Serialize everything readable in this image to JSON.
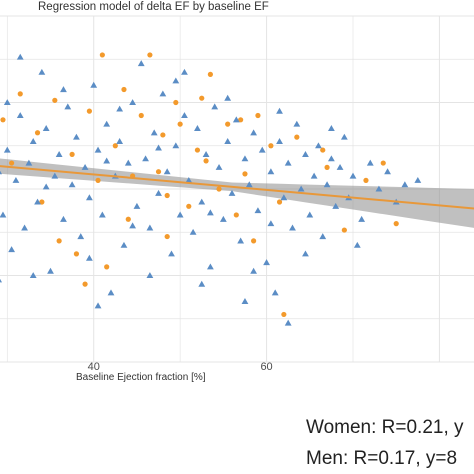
{
  "chart_data": {
    "type": "scatter",
    "title": "Regression model of delta EF by baseline EF",
    "xlabel": "Baseline Ejection fraction [%]",
    "ylabel": "",
    "x_ticks": [
      40,
      60
    ],
    "xlim": [
      28,
      84
    ],
    "ylim": [
      -40,
      40
    ],
    "grid": true,
    "legend": "none",
    "colors": {
      "triangle_series": "#5b8dc5",
      "circle_series": "#f39a2c",
      "fit_line": "#e8983a",
      "confidence_band": "#8c8c8c",
      "grid": "#e4e4e4"
    },
    "series": [
      {
        "marker": "circle",
        "color": "#f39a2c",
        "points": [
          [
            29.5,
            16.0
          ],
          [
            30.5,
            6.0
          ],
          [
            31.5,
            22.0
          ],
          [
            33.5,
            13.0
          ],
          [
            35.5,
            20.5
          ],
          [
            36.0,
            -12.0
          ],
          [
            37.5,
            8.0
          ],
          [
            38.0,
            -15.0
          ],
          [
            39.5,
            18.0
          ],
          [
            40.5,
            2.0
          ],
          [
            41.0,
            31.0
          ],
          [
            41.5,
            -18.0
          ],
          [
            42.5,
            10.0
          ],
          [
            43.5,
            23.0
          ],
          [
            44.0,
            -7.0
          ],
          [
            45.5,
            17.0
          ],
          [
            46.5,
            31.0
          ],
          [
            47.5,
            4.0
          ],
          [
            48.0,
            12.5
          ],
          [
            48.5,
            -11.0
          ],
          [
            49.5,
            20.0
          ],
          [
            50.0,
            15.0
          ],
          [
            51.0,
            -4.0
          ],
          [
            52.0,
            9.0
          ],
          [
            53.0,
            6.5
          ],
          [
            53.5,
            26.5
          ],
          [
            54.5,
            0.0
          ],
          [
            55.5,
            15.0
          ],
          [
            56.5,
            -6.0
          ],
          [
            57.5,
            3.5
          ],
          [
            58.5,
            -12.0
          ],
          [
            59.0,
            17.0
          ],
          [
            60.5,
            10.0
          ],
          [
            61.5,
            -3.0
          ],
          [
            62.0,
            -29.0
          ],
          [
            63.5,
            12.0
          ],
          [
            66.5,
            9.0
          ],
          [
            67.0,
            5.0
          ],
          [
            69.0,
            -9.5
          ],
          [
            71.5,
            2.0
          ],
          [
            73.5,
            6.0
          ],
          [
            75.0,
            -8.0
          ],
          [
            34.0,
            -3.0
          ],
          [
            39.0,
            -22.0
          ],
          [
            44.5,
            3.0
          ],
          [
            48.5,
            -1.5
          ],
          [
            52.5,
            21.0
          ],
          [
            57.0,
            16.0
          ]
        ]
      },
      {
        "marker": "triangle",
        "color": "#5b8dc5",
        "points": [
          [
            28.5,
            12.0
          ],
          [
            29.0,
            4.0
          ],
          [
            29.5,
            -6.0
          ],
          [
            30.0,
            9.0
          ],
          [
            30.5,
            -14.0
          ],
          [
            31.0,
            2.0
          ],
          [
            31.5,
            17.0
          ],
          [
            32.0,
            -9.0
          ],
          [
            32.5,
            6.0
          ],
          [
            33.0,
            11.0
          ],
          [
            33.5,
            -3.0
          ],
          [
            34.0,
            27.0
          ],
          [
            34.5,
            14.0
          ],
          [
            35.0,
            -19.0
          ],
          [
            35.5,
            3.0
          ],
          [
            36.0,
            8.0
          ],
          [
            36.5,
            -7.0
          ],
          [
            37.0,
            19.0
          ],
          [
            37.5,
            1.0
          ],
          [
            38.0,
            12.0
          ],
          [
            38.5,
            -11.0
          ],
          [
            39.0,
            5.0
          ],
          [
            39.5,
            -2.0
          ],
          [
            40.0,
            24.0
          ],
          [
            40.5,
            9.0
          ],
          [
            41.0,
            -6.0
          ],
          [
            41.5,
            15.0
          ],
          [
            42.0,
            -24.0
          ],
          [
            42.5,
            3.0
          ],
          [
            43.0,
            11.0
          ],
          [
            43.5,
            -13.0
          ],
          [
            44.0,
            6.0
          ],
          [
            44.5,
            20.0
          ],
          [
            45.0,
            -4.0
          ],
          [
            45.5,
            29.0
          ],
          [
            46.0,
            7.0
          ],
          [
            46.5,
            -9.0
          ],
          [
            47.0,
            13.0
          ],
          [
            47.5,
            -1.0
          ],
          [
            48.0,
            22.0
          ],
          [
            48.5,
            4.0
          ],
          [
            49.0,
            -15.0
          ],
          [
            49.5,
            10.0
          ],
          [
            50.0,
            -6.0
          ],
          [
            50.5,
            17.0
          ],
          [
            51.0,
            2.0
          ],
          [
            51.5,
            -10.0
          ],
          [
            52.0,
            14.0
          ],
          [
            52.5,
            -3.0
          ],
          [
            53.0,
            8.0
          ],
          [
            53.5,
            -18.0
          ],
          [
            54.0,
            19.0
          ],
          [
            54.5,
            5.0
          ],
          [
            55.0,
            -7.0
          ],
          [
            55.5,
            11.0
          ],
          [
            56.0,
            -1.0
          ],
          [
            56.5,
            16.0
          ],
          [
            57.0,
            -12.0
          ],
          [
            57.5,
            7.0
          ],
          [
            58.0,
            1.0
          ],
          [
            58.5,
            13.0
          ],
          [
            59.0,
            -5.0
          ],
          [
            59.5,
            9.0
          ],
          [
            60.0,
            -17.0
          ],
          [
            60.5,
            4.0
          ],
          [
            61.0,
            -24.0
          ],
          [
            61.5,
            11.0
          ],
          [
            62.0,
            -2.0
          ],
          [
            62.5,
            6.0
          ],
          [
            63.0,
            -9.0
          ],
          [
            63.5,
            15.0
          ],
          [
            64.0,
            0.0
          ],
          [
            64.5,
            8.0
          ],
          [
            65.0,
            -6.0
          ],
          [
            65.5,
            3.0
          ],
          [
            66.0,
            10.0
          ],
          [
            66.5,
            -11.0
          ],
          [
            67.0,
            1.0
          ],
          [
            67.5,
            7.0
          ],
          [
            68.0,
            -4.0
          ],
          [
            68.5,
            5.0
          ],
          [
            69.0,
            12.0
          ],
          [
            69.5,
            -2.0
          ],
          [
            70.0,
            3.0
          ],
          [
            71.0,
            -7.0
          ],
          [
            72.0,
            6.0
          ],
          [
            73.0,
            0.0
          ],
          [
            74.0,
            4.0
          ],
          [
            75.0,
            -3.0
          ],
          [
            76.0,
            1.0
          ],
          [
            77.5,
            2.0
          ],
          [
            30.0,
            20.0
          ],
          [
            33.0,
            -20.0
          ],
          [
            36.5,
            23.0
          ],
          [
            39.5,
            -16.0
          ],
          [
            43.0,
            18.5
          ],
          [
            46.5,
            -20.0
          ],
          [
            49.5,
            25.0
          ],
          [
            52.5,
            -22.0
          ],
          [
            55.5,
            21.0
          ],
          [
            58.5,
            -19.0
          ],
          [
            61.5,
            18.0
          ],
          [
            64.5,
            -15.0
          ],
          [
            31.5,
            30.5
          ],
          [
            40.5,
            -27.0
          ],
          [
            50.5,
            27.0
          ],
          [
            57.5,
            -26.0
          ],
          [
            67.5,
            14.0
          ],
          [
            70.5,
            -13.0
          ],
          [
            29.0,
            -21.0
          ],
          [
            34.5,
            0.5
          ],
          [
            41.5,
            6.5
          ],
          [
            44.5,
            -8.5
          ],
          [
            47.5,
            9.5
          ],
          [
            53.5,
            -5.5
          ],
          [
            60.5,
            -8.0
          ],
          [
            62.5,
            -31.0
          ]
        ]
      }
    ],
    "regression": {
      "x": [
        28,
        84
      ],
      "y": [
        5.5,
        -4.5
      ],
      "band_halfwidth_start": 1.8,
      "band_halfwidth_middle": 1.0,
      "band_halfwidth_end": 4.5
    },
    "annotations": [
      "Women: R=0.21, y",
      "Men: R=0.17, y=8"
    ]
  }
}
